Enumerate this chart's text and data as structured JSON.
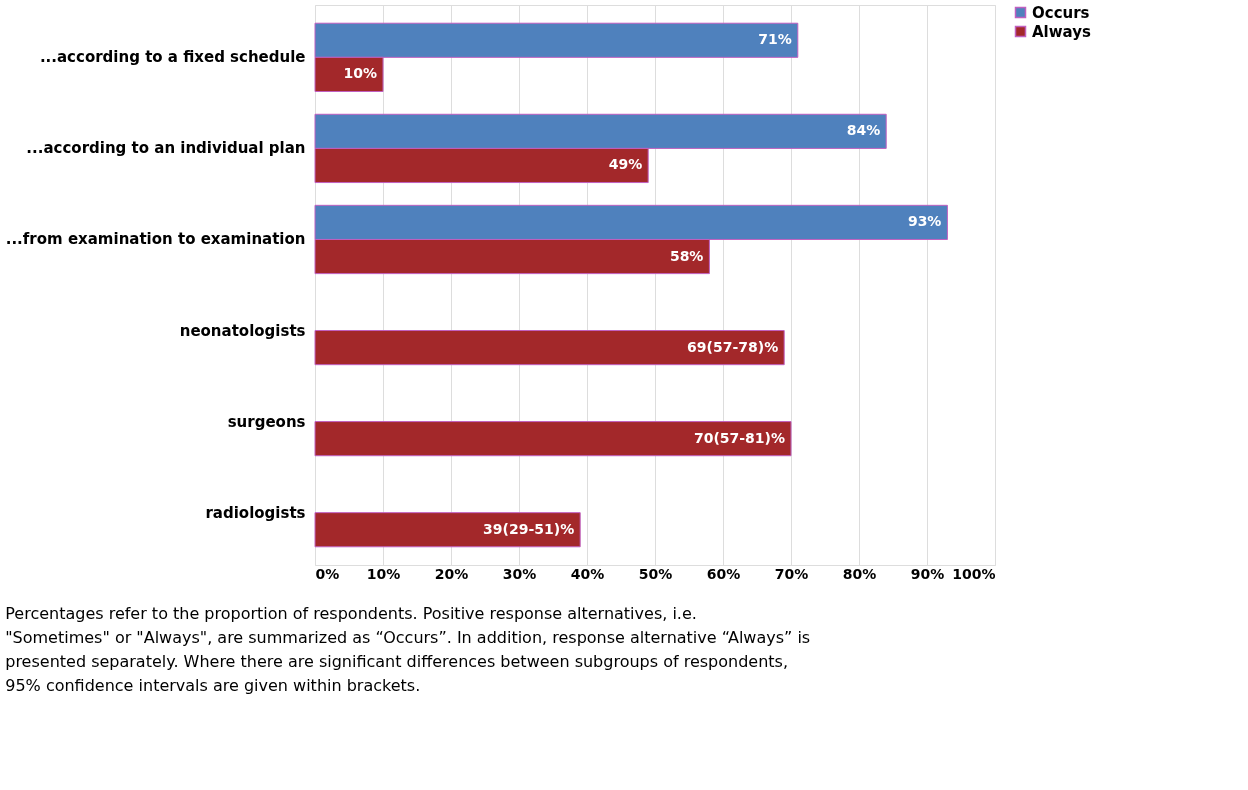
{
  "chart_data": {
    "type": "bar",
    "orientation": "horizontal",
    "categories": [
      "...according to a fixed schedule",
      "...according to an individual plan",
      "...from examination to examination",
      "neonatologists",
      "surgeons",
      "radiologists"
    ],
    "series": [
      {
        "name": "Occurs",
        "color": "#4f81bd",
        "values": [
          71,
          84,
          93,
          null,
          null,
          null
        ],
        "value_labels": [
          "71%",
          "84%",
          "93%",
          null,
          null,
          null
        ]
      },
      {
        "name": "Always",
        "color": "#a3282a",
        "values": [
          10,
          49,
          58,
          69,
          70,
          39
        ],
        "value_labels": [
          "10%",
          "49%",
          "58%",
          "69(57-78)%",
          "70(57-81)%",
          "39(29-51)%"
        ]
      }
    ],
    "xlim": [
      0,
      100
    ],
    "xticks": [
      {
        "value": 0,
        "label": "0%"
      },
      {
        "value": 10,
        "label": "10%"
      },
      {
        "value": 20,
        "label": "20%"
      },
      {
        "value": 30,
        "label": "30%"
      },
      {
        "value": 40,
        "label": "40%"
      },
      {
        "value": 50,
        "label": "50%"
      },
      {
        "value": 60,
        "label": "60%"
      },
      {
        "value": 70,
        "label": "70%"
      },
      {
        "value": 80,
        "label": "80%"
      },
      {
        "value": 90,
        "label": "90%"
      },
      {
        "value": 100,
        "label": "100%"
      }
    ],
    "grid": "x",
    "legend": "right",
    "annotations": [
      "Percentages refer to the proportion of respondents. Positive response alternatives, i.e. \"Sometimes\" or \"Always\", are summarized as “Occurs”. In addition, response alternative “Always” is presented separately. Where there are significant differences between subgroups of respondents, 95% confidence intervals are given within brackets."
    ]
  }
}
